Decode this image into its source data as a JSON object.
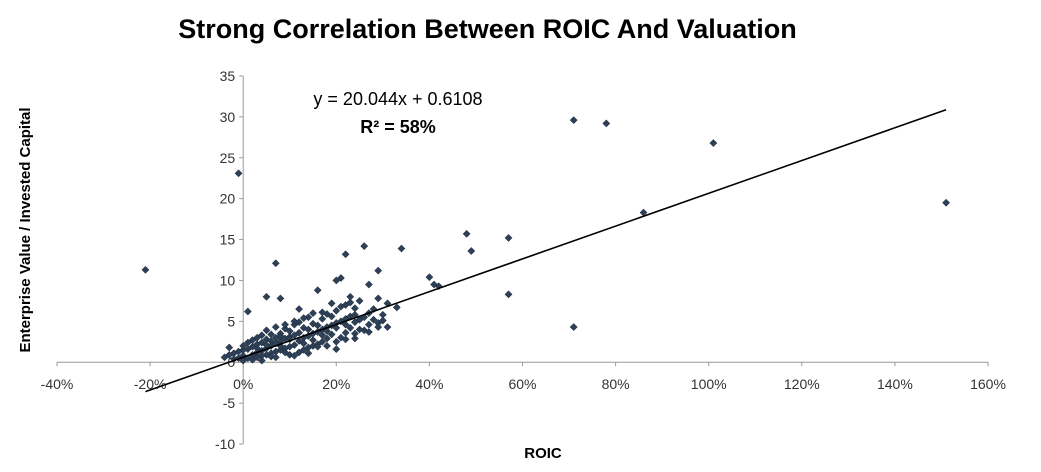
{
  "chart_data": {
    "type": "scatter",
    "title": "Strong Correlation Between ROIC And Valuation",
    "xlabel": "ROIC",
    "ylabel": "Enterprise Value / Invested Capital",
    "xlim": [
      -0.4,
      1.6
    ],
    "ylim": [
      -10,
      35
    ],
    "x_ticks": [
      -0.4,
      -0.2,
      0,
      0.2,
      0.4,
      0.6,
      0.8,
      1.0,
      1.2,
      1.4,
      1.6
    ],
    "x_tick_labels": [
      "-40%",
      "-20%",
      "0%",
      "20%",
      "40%",
      "60%",
      "80%",
      "100%",
      "120%",
      "140%",
      "160%"
    ],
    "y_ticks": [
      -10,
      -5,
      0,
      5,
      10,
      15,
      20,
      25,
      30,
      35
    ],
    "y_tick_labels": [
      "-10",
      "-5",
      "0",
      "5",
      "10",
      "15",
      "20",
      "25",
      "30",
      "35"
    ],
    "grid": false,
    "marker_color": "#2E4057",
    "trendline": {
      "slope": 20.044,
      "intercept": 0.6108,
      "x_range": [
        -0.21,
        1.51
      ],
      "equation_label": "y = 20.044x + 0.6108",
      "r2_label": "R² = 58%"
    },
    "points": [
      [
        -0.21,
        11.3
      ],
      [
        -0.01,
        23.1
      ],
      [
        0.71,
        29.6
      ],
      [
        0.78,
        29.2
      ],
      [
        1.01,
        26.8
      ],
      [
        1.51,
        19.5
      ],
      [
        0.86,
        18.3
      ],
      [
        0.48,
        15.7
      ],
      [
        0.57,
        15.2
      ],
      [
        0.49,
        13.6
      ],
      [
        0.34,
        13.9
      ],
      [
        0.26,
        14.2
      ],
      [
        0.22,
        13.2
      ],
      [
        0.07,
        12.1
      ],
      [
        0.4,
        10.4
      ],
      [
        0.41,
        9.5
      ],
      [
        0.42,
        9.3
      ],
      [
        0.57,
        8.3
      ],
      [
        0.71,
        4.3
      ],
      [
        0.29,
        11.2
      ],
      [
        0.2,
        10.0
      ],
      [
        0.21,
        10.3
      ],
      [
        0.27,
        9.5
      ],
      [
        0.16,
        8.8
      ],
      [
        0.05,
        8.0
      ],
      [
        0.08,
        7.8
      ],
      [
        0.01,
        6.2
      ],
      [
        0.12,
        6.5
      ],
      [
        0.23,
        8.0
      ],
      [
        0.29,
        7.8
      ],
      [
        0.31,
        7.2
      ],
      [
        0.33,
        6.7
      ],
      [
        0.3,
        5.8
      ],
      [
        0.28,
        5.2
      ],
      [
        0.27,
        4.6
      ],
      [
        0.26,
        3.9
      ],
      [
        0.31,
        4.3
      ],
      [
        0.29,
        4.8
      ],
      [
        0.24,
        6.6
      ],
      [
        0.22,
        7.0
      ],
      [
        0.2,
        6.3
      ],
      [
        0.18,
        5.9
      ],
      [
        0.17,
        5.3
      ],
      [
        0.15,
        4.7
      ],
      [
        0.14,
        5.5
      ],
      [
        0.13,
        4.2
      ],
      [
        0.11,
        4.6
      ],
      [
        0.1,
        3.8
      ],
      [
        0.09,
        4.1
      ],
      [
        0.08,
        3.5
      ],
      [
        0.07,
        3.0
      ],
      [
        0.06,
        3.4
      ],
      [
        0.05,
        2.8
      ],
      [
        0.04,
        2.4
      ],
      [
        0.03,
        2.2
      ],
      [
        0.02,
        1.9
      ],
      [
        0.01,
        1.6
      ],
      [
        0.0,
        1.5
      ],
      [
        -0.01,
        1.3
      ],
      [
        -0.02,
        1.1
      ],
      [
        -0.03,
        0.9
      ],
      [
        -0.04,
        0.6
      ],
      [
        -0.03,
        1.8
      ],
      [
        -0.02,
        0.4
      ],
      [
        0.0,
        0.8
      ],
      [
        0.01,
        0.5
      ],
      [
        0.02,
        0.9
      ],
      [
        0.03,
        1.2
      ],
      [
        0.04,
        1.4
      ],
      [
        0.05,
        1.7
      ],
      [
        0.06,
        2.0
      ],
      [
        0.07,
        2.3
      ],
      [
        0.08,
        2.6
      ],
      [
        0.09,
        2.9
      ],
      [
        0.1,
        3.1
      ],
      [
        0.11,
        3.3
      ],
      [
        0.12,
        3.6
      ],
      [
        0.13,
        3.0
      ],
      [
        0.14,
        3.2
      ],
      [
        0.15,
        3.5
      ],
      [
        0.16,
        3.7
      ],
      [
        0.17,
        4.0
      ],
      [
        0.18,
        4.3
      ],
      [
        0.19,
        4.5
      ],
      [
        0.2,
        4.8
      ],
      [
        0.21,
        5.0
      ],
      [
        0.22,
        5.3
      ],
      [
        0.23,
        5.6
      ],
      [
        0.24,
        4.9
      ],
      [
        0.25,
        5.2
      ],
      [
        0.19,
        3.4
      ],
      [
        0.18,
        2.9
      ],
      [
        0.17,
        2.5
      ],
      [
        0.16,
        2.2
      ],
      [
        0.15,
        2.0
      ],
      [
        0.14,
        1.8
      ],
      [
        0.13,
        2.3
      ],
      [
        0.12,
        2.6
      ],
      [
        0.11,
        2.1
      ],
      [
        0.1,
        1.9
      ],
      [
        0.09,
        1.7
      ],
      [
        0.08,
        1.5
      ],
      [
        0.07,
        1.3
      ],
      [
        0.06,
        1.1
      ],
      [
        0.05,
        0.9
      ],
      [
        0.04,
        0.8
      ],
      [
        0.03,
        0.6
      ],
      [
        0.12,
        1.2
      ],
      [
        0.2,
        2.5
      ],
      [
        0.21,
        3.0
      ],
      [
        0.22,
        3.6
      ],
      [
        0.23,
        4.2
      ],
      [
        0.24,
        3.5
      ],
      [
        0.25,
        4.0
      ],
      [
        0.26,
        5.5
      ],
      [
        0.27,
        6.0
      ],
      [
        0.19,
        5.6
      ],
      [
        0.17,
        6.1
      ],
      [
        0.15,
        6.0
      ],
      [
        0.13,
        5.4
      ],
      [
        0.11,
        5.0
      ],
      [
        0.09,
        4.6
      ],
      [
        0.07,
        4.3
      ],
      [
        0.05,
        3.9
      ],
      [
        0.04,
        3.3
      ],
      [
        0.03,
        3.0
      ],
      [
        0.02,
        2.7
      ],
      [
        0.01,
        2.4
      ],
      [
        0.0,
        2.0
      ],
      [
        0.06,
        2.6
      ],
      [
        0.08,
        3.2
      ],
      [
        0.1,
        2.8
      ],
      [
        0.14,
        4.0
      ],
      [
        0.16,
        4.5
      ],
      [
        0.18,
        3.8
      ],
      [
        0.2,
        4.2
      ],
      [
        0.22,
        4.6
      ],
      [
        0.24,
        5.8
      ],
      [
        0.28,
        6.5
      ],
      [
        0.25,
        7.5
      ],
      [
        0.23,
        7.3
      ],
      [
        0.21,
        6.8
      ],
      [
        0.19,
        7.2
      ],
      [
        0.12,
        4.9
      ],
      [
        0.16,
        1.9
      ],
      [
        0.18,
        2.0
      ],
      [
        0.2,
        1.6
      ],
      [
        0.22,
        2.8
      ],
      [
        0.24,
        2.9
      ],
      [
        0.09,
        1.2
      ],
      [
        0.14,
        1.1
      ],
      [
        0.06,
        0.7
      ],
      [
        0.1,
        0.9
      ],
      [
        0.13,
        1.5
      ],
      [
        0.15,
        2.7
      ],
      [
        0.17,
        3.3
      ],
      [
        0.02,
        0.3
      ],
      [
        0.04,
        0.2
      ],
      [
        0.07,
        0.6
      ],
      [
        0.11,
        0.8
      ],
      [
        0.0,
        0.2
      ],
      [
        -0.01,
        0.5
      ],
      [
        0.03,
        1.7
      ],
      [
        0.05,
        2.1
      ],
      [
        0.08,
        2.0
      ],
      [
        0.27,
        3.7
      ],
      [
        0.29,
        4.3
      ],
      [
        0.3,
        5.1
      ]
    ]
  }
}
